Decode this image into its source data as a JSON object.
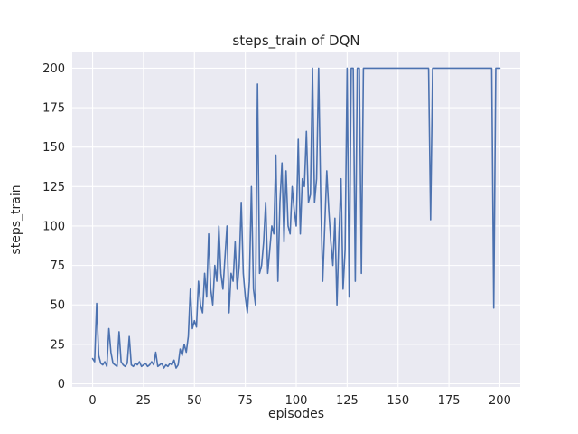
{
  "chart_data": {
    "type": "line",
    "title": "steps_train of DQN",
    "xlabel": "episodes",
    "ylabel": "steps_train",
    "xlim": [
      -10,
      210
    ],
    "ylim": [
      -2,
      210
    ],
    "xticks": [
      0,
      25,
      50,
      75,
      100,
      125,
      150,
      175,
      200
    ],
    "yticks": [
      0,
      25,
      50,
      75,
      100,
      125,
      150,
      175,
      200
    ],
    "grid": true,
    "legend": false,
    "line_color": "#4c72b0",
    "plot_bg": "#eaeaf2",
    "grid_color": "#ffffff",
    "series": [
      {
        "name": "steps_train",
        "x_start": 0,
        "x_step": 1,
        "values": [
          16,
          14,
          51,
          18,
          13,
          12,
          14,
          11,
          35,
          20,
          13,
          12,
          11,
          33,
          14,
          12,
          11,
          13,
          30,
          12,
          11,
          13,
          12,
          14,
          11,
          12,
          13,
          11,
          12,
          14,
          12,
          20,
          11,
          12,
          13,
          10,
          12,
          11,
          13,
          12,
          15,
          10,
          12,
          22,
          18,
          25,
          20,
          30,
          60,
          35,
          40,
          36,
          65,
          50,
          45,
          70,
          55,
          95,
          60,
          50,
          75,
          65,
          100,
          70,
          60,
          80,
          100,
          45,
          70,
          65,
          90,
          60,
          75,
          115,
          70,
          55,
          45,
          65,
          125,
          60,
          50,
          190,
          70,
          75,
          90,
          115,
          70,
          85,
          100,
          95,
          145,
          65,
          115,
          140,
          90,
          135,
          100,
          95,
          125,
          110,
          100,
          155,
          95,
          130,
          125,
          160,
          115,
          120,
          200,
          115,
          130,
          200,
          120,
          65,
          100,
          135,
          110,
          90,
          75,
          105,
          50,
          95,
          130,
          60,
          85,
          200,
          55,
          200,
          200,
          65,
          200,
          200,
          70,
          200,
          200,
          200,
          200,
          200,
          200,
          200,
          200,
          200,
          200,
          200,
          200,
          200,
          200,
          200,
          200,
          200,
          200,
          200,
          200,
          200,
          200,
          200,
          200,
          200,
          200,
          200,
          200,
          200,
          200,
          200,
          200,
          200,
          104,
          200,
          200,
          200,
          200,
          200,
          200,
          200,
          200,
          200,
          200,
          200,
          200,
          200,
          200,
          200,
          200,
          200,
          200,
          200,
          200,
          200,
          200,
          200,
          200,
          200,
          200,
          200,
          200,
          200,
          200,
          48,
          200,
          200,
          200
        ]
      }
    ]
  }
}
